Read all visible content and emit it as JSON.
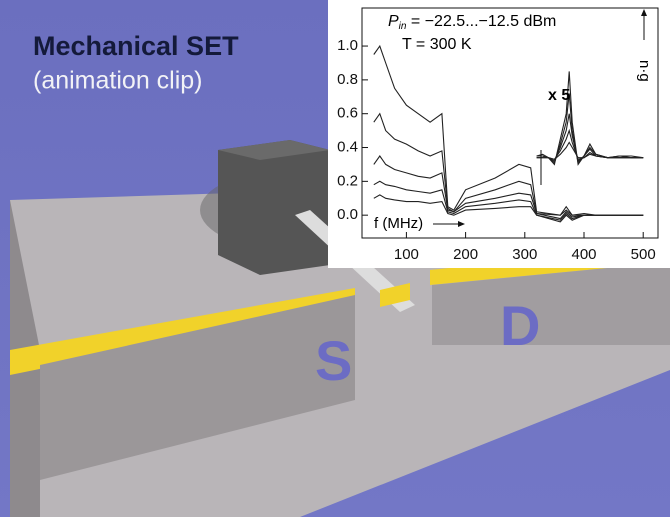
{
  "header": {
    "title": "Mechanical SET",
    "subtitle": "(animation clip)"
  },
  "scene": {
    "labels": [
      "S",
      "D"
    ]
  },
  "chart_data": {
    "type": "line",
    "annotations": {
      "power_symbol": "P",
      "power_subscript": "in",
      "power_text": " = −22.5...−12.5 dBm",
      "temperature": "T = 300 K",
      "scale_note": "x 5"
    },
    "x_label": "f (MHz)",
    "y_label": "n·g",
    "xlim": [
      25,
      525
    ],
    "ylim": [
      -0.135,
      1.225
    ],
    "xticks": [
      100,
      200,
      300,
      400,
      500
    ],
    "yticks": [
      {
        "value": 0,
        "label": "0.0"
      },
      0.2,
      0.4,
      0.6,
      0.8,
      {
        "value": 1,
        "label": "1.0"
      }
    ],
    "color": "#222",
    "series": [
      {
        "x": [
          45,
          55,
          65,
          80,
          100,
          120,
          140,
          160,
          170,
          180,
          200,
          250,
          290,
          310,
          320,
          360,
          370,
          380,
          400,
          420,
          450,
          500
        ],
        "values": [
          0.95,
          1.0,
          0.9,
          0.75,
          0.65,
          0.6,
          0.55,
          0.6,
          0.05,
          0.03,
          0.15,
          0.22,
          0.3,
          0.28,
          0.02,
          0.0,
          0.05,
          0.0,
          0.01,
          0.0,
          0.0,
          0.0
        ]
      },
      {
        "x": [
          45,
          55,
          65,
          80,
          100,
          120,
          140,
          160,
          170,
          180,
          200,
          250,
          290,
          310,
          320,
          360,
          370,
          380,
          400,
          420,
          450,
          500
        ],
        "values": [
          0.55,
          0.6,
          0.5,
          0.45,
          0.42,
          0.38,
          0.35,
          0.38,
          0.04,
          0.02,
          0.1,
          0.15,
          0.2,
          0.18,
          0.01,
          0.0,
          0.03,
          0.0,
          0.0,
          0.0,
          0.0,
          0.0
        ]
      },
      {
        "x": [
          45,
          55,
          65,
          80,
          100,
          120,
          140,
          160,
          170,
          180,
          200,
          250,
          290,
          310,
          320,
          360,
          370,
          380,
          400,
          420,
          450,
          500
        ],
        "values": [
          0.3,
          0.35,
          0.3,
          0.27,
          0.25,
          0.23,
          0.22,
          0.25,
          0.03,
          0.02,
          0.07,
          0.1,
          0.13,
          0.12,
          0.01,
          -0.02,
          0.02,
          -0.01,
          0.0,
          0.0,
          0.0,
          0.0
        ]
      },
      {
        "x": [
          45,
          55,
          65,
          80,
          100,
          120,
          140,
          160,
          170,
          180,
          200,
          250,
          290,
          310,
          320,
          360,
          370,
          380,
          400,
          420,
          450,
          500
        ],
        "values": [
          0.18,
          0.2,
          0.18,
          0.17,
          0.15,
          0.14,
          0.13,
          0.15,
          0.02,
          0.01,
          0.05,
          0.07,
          0.09,
          0.08,
          0.0,
          -0.03,
          0.01,
          -0.02,
          0.0,
          0.0,
          0.0,
          0.0
        ]
      },
      {
        "x": [
          45,
          55,
          65,
          80,
          100,
          120,
          140,
          160,
          170,
          180,
          200,
          250,
          290,
          310,
          320,
          360,
          370,
          380,
          400,
          420,
          450,
          500
        ],
        "values": [
          0.1,
          0.12,
          0.1,
          0.09,
          0.08,
          0.08,
          0.07,
          0.08,
          0.01,
          0.0,
          0.03,
          0.04,
          0.05,
          0.05,
          0.0,
          -0.04,
          0.0,
          -0.03,
          0.0,
          0.0,
          0.0,
          0.0
        ]
      },
      {
        "x": [
          320,
          330,
          340,
          350,
          360,
          370,
          375,
          380,
          390,
          400,
          410,
          420,
          440,
          460,
          480,
          500
        ],
        "values": [
          0.35,
          0.36,
          0.34,
          0.3,
          0.45,
          0.6,
          0.85,
          0.55,
          0.3,
          0.35,
          0.42,
          0.36,
          0.34,
          0.35,
          0.35,
          0.34
        ]
      },
      {
        "x": [
          320,
          330,
          340,
          350,
          360,
          370,
          375,
          380,
          390,
          400,
          410,
          420,
          440,
          460,
          480,
          500
        ],
        "values": [
          0.35,
          0.35,
          0.34,
          0.31,
          0.42,
          0.55,
          0.72,
          0.5,
          0.31,
          0.35,
          0.4,
          0.36,
          0.34,
          0.35,
          0.34,
          0.34
        ]
      },
      {
        "x": [
          320,
          330,
          340,
          350,
          360,
          370,
          375,
          380,
          390,
          400,
          410,
          420,
          440,
          460,
          480,
          500
        ],
        "values": [
          0.35,
          0.35,
          0.34,
          0.32,
          0.4,
          0.5,
          0.6,
          0.47,
          0.32,
          0.35,
          0.39,
          0.35,
          0.34,
          0.34,
          0.34,
          0.34
        ]
      },
      {
        "x": [
          320,
          330,
          340,
          350,
          360,
          370,
          375,
          380,
          390,
          400,
          410,
          420,
          440,
          460,
          480,
          500
        ],
        "values": [
          0.34,
          0.34,
          0.34,
          0.33,
          0.38,
          0.45,
          0.5,
          0.43,
          0.33,
          0.34,
          0.37,
          0.35,
          0.34,
          0.34,
          0.34,
          0.34
        ]
      },
      {
        "x": [
          320,
          330,
          340,
          350,
          360,
          370,
          375,
          380,
          390,
          400,
          410,
          420,
          440,
          460,
          480,
          500
        ],
        "values": [
          0.34,
          0.34,
          0.34,
          0.33,
          0.36,
          0.4,
          0.43,
          0.4,
          0.34,
          0.34,
          0.36,
          0.35,
          0.34,
          0.34,
          0.34,
          0.34
        ]
      }
    ]
  }
}
